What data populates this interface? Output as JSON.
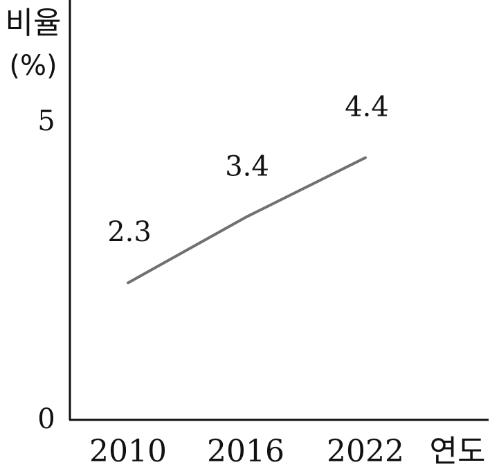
{
  "chart_data": {
    "type": "line",
    "categories": [
      "2010",
      "2016",
      "2022"
    ],
    "series": [
      {
        "values": [
          2.3,
          3.4,
          4.4
        ]
      }
    ],
    "data_labels": [
      "2.3",
      "3.4",
      "4.4"
    ],
    "ylabel_line1": "비율",
    "ylabel_line2": "(%)",
    "xlabel": "연도",
    "yticks": [
      "0",
      "5"
    ],
    "ylim": [
      0,
      5
    ],
    "grid": false,
    "line_color": "#707070",
    "axis_color": "#111111"
  }
}
